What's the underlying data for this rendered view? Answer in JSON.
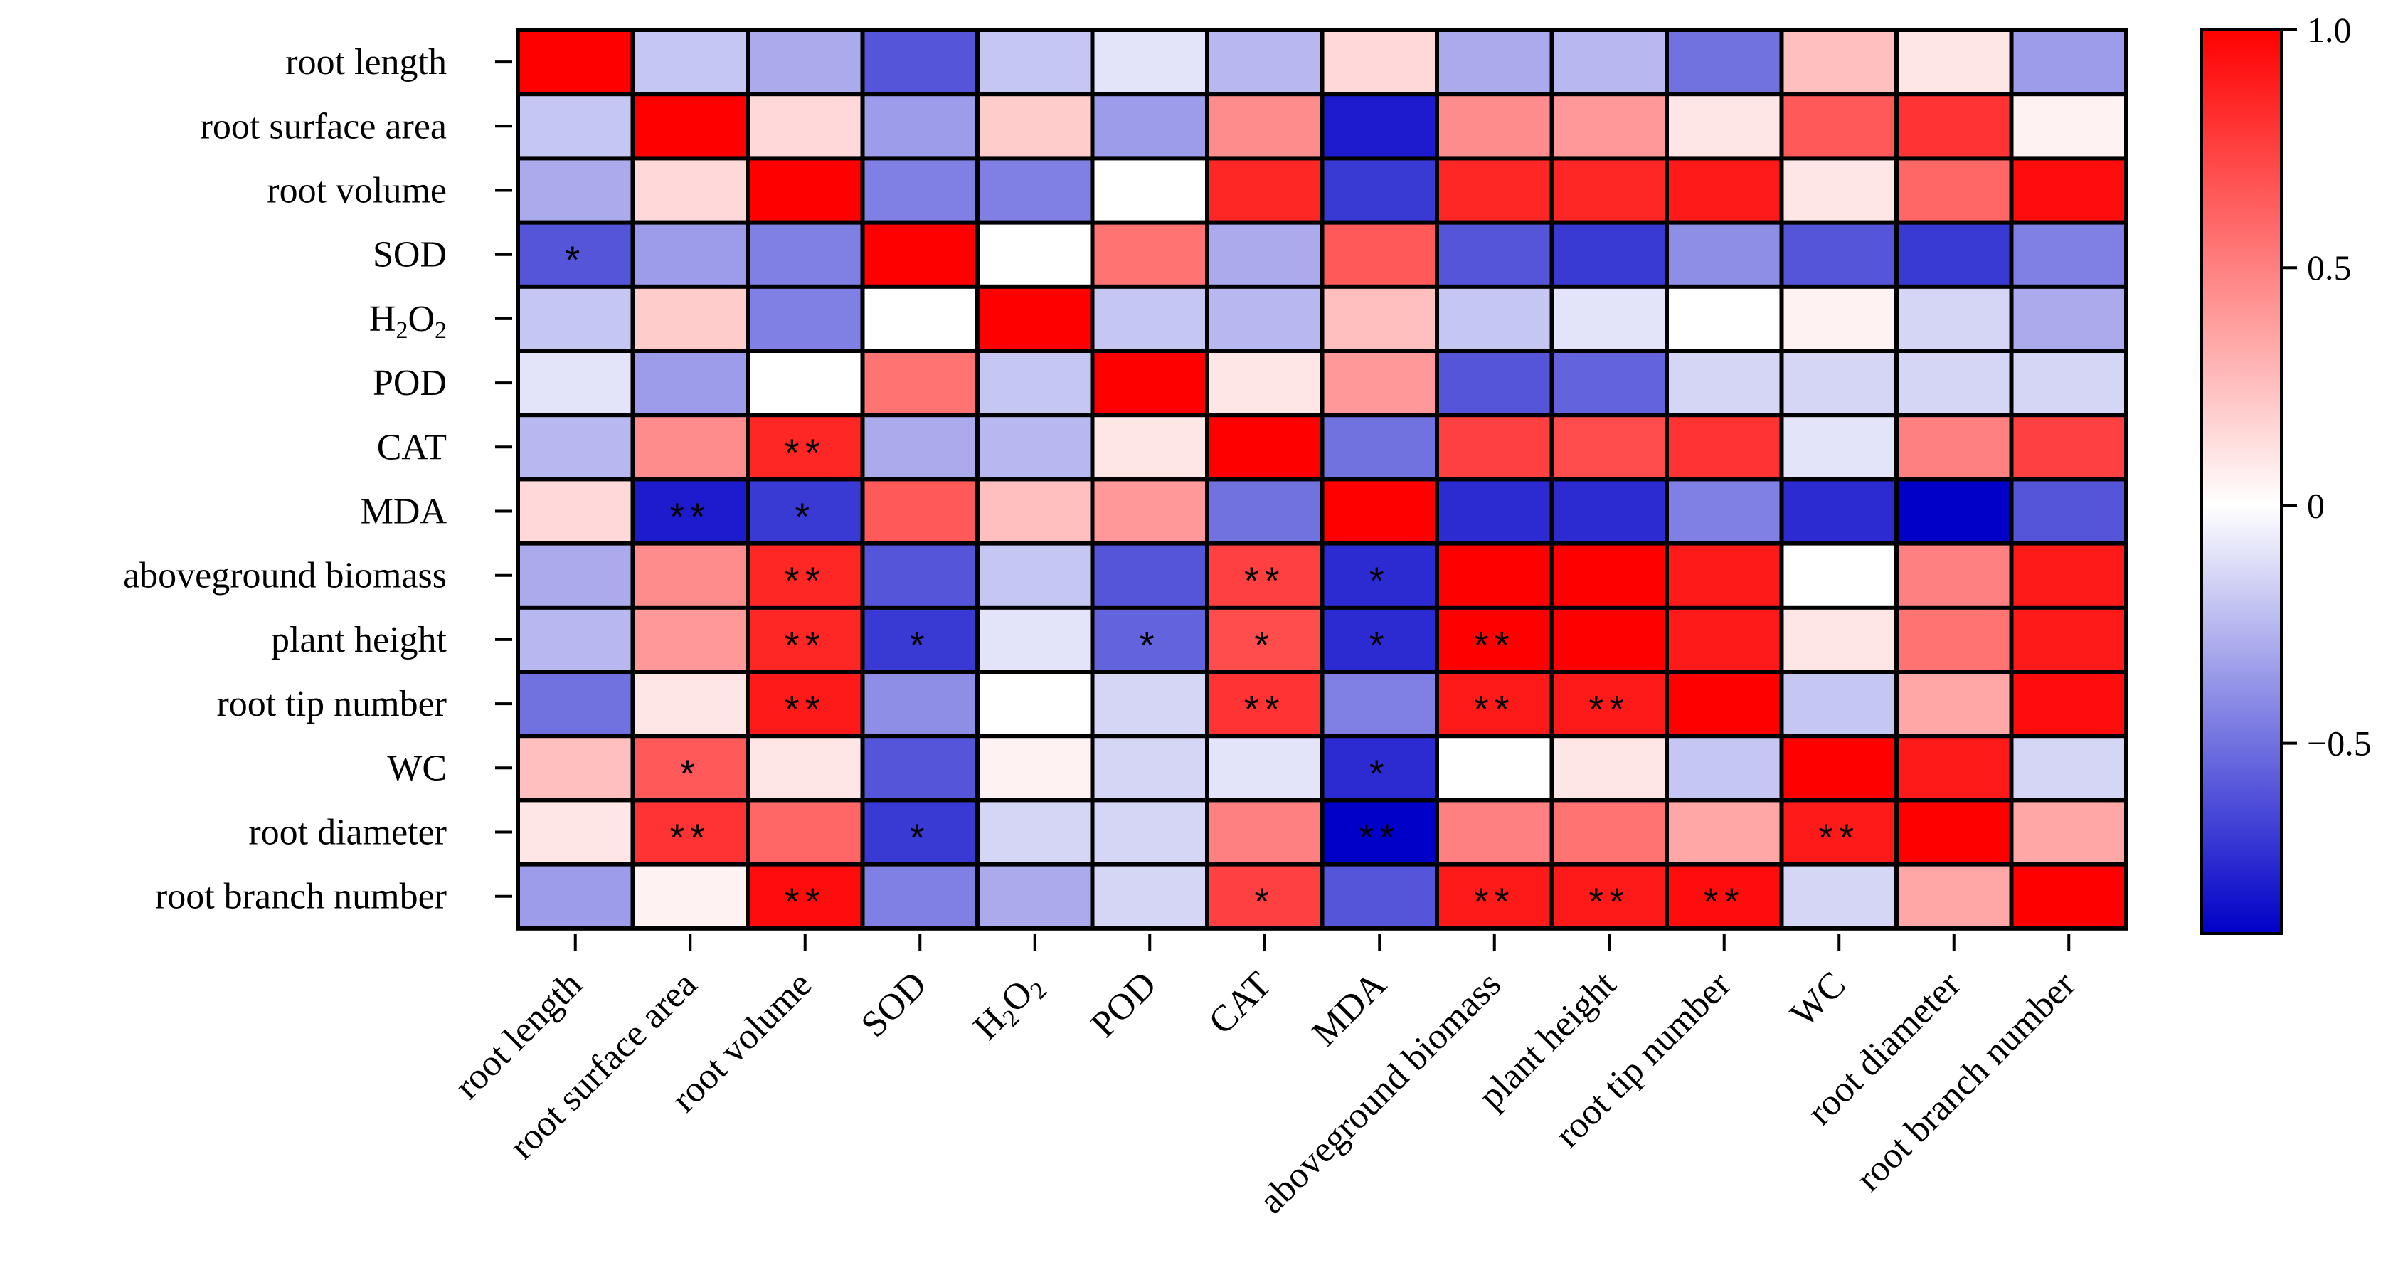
{
  "chart_data": {
    "type": "heatmap",
    "title": "",
    "row_labels": [
      "root length",
      "root surface area",
      "root volume",
      "SOD",
      "H2O2",
      "POD",
      "CAT",
      "MDA",
      "aboveground biomass",
      "plant height",
      "root tip number",
      "WC",
      "root diameter",
      "root branch number"
    ],
    "col_labels": [
      "root length",
      "root surface area",
      "root volume",
      "SOD",
      "H2O2",
      "POD",
      "CAT",
      "MDA",
      "aboveground biomass",
      "plant height",
      "root tip number",
      "WC",
      "root diameter",
      "root branch number"
    ],
    "values": [
      [
        1.0,
        -0.2,
        -0.3,
        -0.6,
        -0.2,
        -0.1,
        -0.25,
        0.15,
        -0.3,
        -0.25,
        -0.5,
        0.25,
        0.1,
        -0.35
      ],
      [
        -0.2,
        1.0,
        0.15,
        -0.35,
        0.2,
        -0.35,
        0.45,
        -0.8,
        0.45,
        0.4,
        0.1,
        0.65,
        0.8,
        0.05
      ],
      [
        -0.3,
        0.15,
        1.0,
        -0.45,
        -0.45,
        0.0,
        0.85,
        -0.7,
        0.85,
        0.85,
        0.9,
        0.1,
        0.6,
        0.95
      ],
      [
        -0.6,
        -0.35,
        -0.45,
        1.0,
        0.0,
        0.55,
        -0.3,
        0.65,
        -0.6,
        -0.7,
        -0.4,
        -0.6,
        -0.7,
        -0.45
      ],
      [
        -0.2,
        0.2,
        -0.45,
        0.0,
        1.0,
        -0.2,
        -0.25,
        0.25,
        -0.2,
        -0.1,
        0.0,
        0.05,
        -0.15,
        -0.3
      ],
      [
        -0.1,
        -0.35,
        0.0,
        0.55,
        -0.2,
        1.0,
        0.1,
        0.4,
        -0.6,
        -0.55,
        -0.15,
        -0.15,
        -0.15,
        -0.15
      ],
      [
        -0.25,
        0.45,
        0.85,
        -0.3,
        -0.25,
        0.1,
        1.0,
        -0.5,
        0.75,
        0.7,
        0.8,
        -0.1,
        0.5,
        0.75
      ],
      [
        0.15,
        -0.8,
        -0.7,
        0.65,
        0.25,
        0.4,
        -0.5,
        1.0,
        -0.75,
        -0.75,
        -0.45,
        -0.75,
        -0.95,
        -0.6
      ],
      [
        -0.3,
        0.45,
        0.85,
        -0.6,
        -0.2,
        -0.6,
        0.75,
        -0.75,
        1.0,
        1.0,
        0.9,
        0.0,
        0.5,
        0.9
      ],
      [
        -0.25,
        0.4,
        0.85,
        -0.7,
        -0.1,
        -0.55,
        0.7,
        -0.75,
        1.0,
        1.0,
        0.9,
        0.1,
        0.55,
        0.9
      ],
      [
        -0.5,
        0.1,
        0.9,
        -0.4,
        0.0,
        -0.15,
        0.8,
        -0.45,
        0.9,
        0.9,
        1.0,
        -0.2,
        0.35,
        0.95
      ],
      [
        0.25,
        0.65,
        0.1,
        -0.6,
        0.05,
        -0.15,
        -0.1,
        -0.75,
        0.0,
        0.1,
        -0.2,
        1.0,
        0.9,
        -0.15
      ],
      [
        0.1,
        0.8,
        0.6,
        -0.7,
        -0.15,
        -0.15,
        0.5,
        -0.95,
        0.5,
        0.55,
        0.35,
        0.9,
        1.0,
        0.35
      ],
      [
        -0.35,
        0.05,
        0.95,
        -0.45,
        -0.3,
        -0.15,
        0.75,
        -0.6,
        0.9,
        0.9,
        0.95,
        -0.15,
        0.35,
        1.0
      ]
    ],
    "significance": [
      [
        "",
        "",
        "",
        "",
        "",
        "",
        "",
        "",
        "",
        "",
        "",
        "",
        "",
        ""
      ],
      [
        "",
        "",
        "",
        "",
        "",
        "",
        "",
        "",
        "",
        "",
        "",
        "",
        "",
        ""
      ],
      [
        "",
        "",
        "",
        "",
        "",
        "",
        "",
        "",
        "",
        "",
        "",
        "",
        "",
        ""
      ],
      [
        "*",
        "",
        "",
        "",
        "",
        "",
        "",
        "",
        "",
        "",
        "",
        "",
        "",
        ""
      ],
      [
        "",
        "",
        "",
        "",
        "",
        "",
        "",
        "",
        "",
        "",
        "",
        "",
        "",
        ""
      ],
      [
        "",
        "",
        "",
        "",
        "",
        "",
        "",
        "",
        "",
        "",
        "",
        "",
        "",
        ""
      ],
      [
        "",
        "",
        "**",
        "",
        "",
        "",
        "",
        "",
        "",
        "",
        "",
        "",
        "",
        ""
      ],
      [
        "",
        "**",
        "*",
        "",
        "",
        "",
        "",
        "",
        "",
        "",
        "",
        "",
        "",
        ""
      ],
      [
        "",
        "",
        "**",
        "",
        "",
        "",
        "**",
        "*",
        "",
        "",
        "",
        "",
        "",
        ""
      ],
      [
        "",
        "",
        "**",
        "*",
        "",
        "*",
        "*",
        "*",
        "**",
        "",
        "",
        "",
        "",
        ""
      ],
      [
        "",
        "",
        "**",
        "",
        "",
        "",
        "**",
        "",
        "**",
        "**",
        "",
        "",
        "",
        ""
      ],
      [
        "",
        "*",
        "",
        "",
        "",
        "",
        "",
        "*",
        "",
        "",
        "",
        "",
        "",
        ""
      ],
      [
        "",
        "**",
        "",
        "*",
        "",
        "",
        "",
        "**",
        "",
        "",
        "",
        "**",
        "",
        ""
      ],
      [
        "",
        "",
        "**",
        "",
        "",
        "",
        "*",
        "",
        "**",
        "**",
        "**",
        "",
        "",
        ""
      ]
    ],
    "colorbar": {
      "min": -0.9,
      "max": 1.0,
      "ticks": [
        1.0,
        0.5,
        0,
        -0.5
      ],
      "tick_labels": [
        "1.0",
        "0.5",
        "0",
        "−0.5"
      ],
      "colors": {
        "negative": "#0000c8",
        "neutral": "#ffffff",
        "positive": "#ff0000"
      }
    },
    "xlabel": "",
    "ylabel": ""
  }
}
